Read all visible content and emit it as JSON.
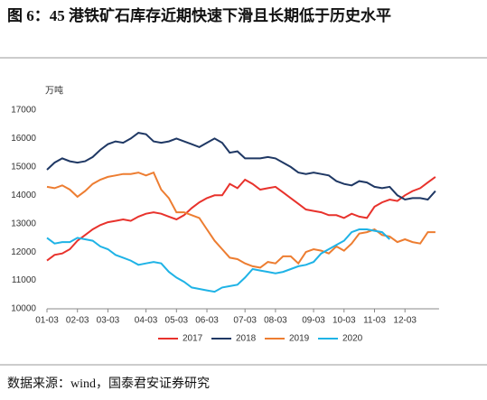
{
  "chart_data": {
    "type": "line",
    "title": "图 6：45 港铁矿石库存近期快速下滑且长期低于历史水平",
    "y_label": "万吨",
    "source": "数据来源：wind，国泰君安证券研究",
    "categories": [
      "01-03",
      null,
      null,
      null,
      "02-03",
      null,
      null,
      null,
      "03-03",
      null,
      null,
      null,
      null,
      "04-03",
      null,
      null,
      null,
      "05-03",
      null,
      null,
      null,
      "06-03",
      null,
      null,
      null,
      null,
      "07-03",
      null,
      null,
      null,
      "08-03",
      null,
      null,
      null,
      null,
      "09-03",
      null,
      null,
      null,
      "10-03",
      null,
      null,
      null,
      "11-03",
      null,
      null,
      null,
      "12-03",
      null,
      null,
      null,
      null
    ],
    "ylim": [
      10000,
      17000
    ],
    "yticks": [
      10000,
      11000,
      12000,
      13000,
      14000,
      15000,
      16000,
      17000
    ],
    "legend": "bottom",
    "series": [
      {
        "name": "2017",
        "color": "#e8322c",
        "values": [
          11700,
          11900,
          11950,
          12100,
          12400,
          12600,
          12800,
          12950,
          13050,
          13100,
          13150,
          13100,
          13250,
          13350,
          13400,
          13350,
          13250,
          13150,
          13300,
          13550,
          13750,
          13900,
          14000,
          14000,
          14400,
          14250,
          14550,
          14400,
          14200,
          14250,
          14300,
          14100,
          13900,
          13700,
          13500,
          13450,
          13400,
          13300,
          13300,
          13200,
          13350,
          13250,
          13200,
          13600,
          13750,
          13850,
          13800,
          14000,
          14150,
          14250,
          14450,
          14650
        ]
      },
      {
        "name": "2018",
        "color": "#1f3864",
        "values": [
          14900,
          15150,
          15300,
          15200,
          15150,
          15200,
          15350,
          15600,
          15800,
          15900,
          15850,
          16000,
          16200,
          16150,
          15900,
          15850,
          15900,
          16000,
          15900,
          15800,
          15700,
          15850,
          16000,
          15850,
          15500,
          15550,
          15300,
          15300,
          15300,
          15350,
          15300,
          15150,
          15000,
          14800,
          14750,
          14800,
          14750,
          14700,
          14500,
          14400,
          14350,
          14500,
          14450,
          14300,
          14250,
          14300,
          14000,
          13850,
          13900,
          13900,
          13850,
          14150
        ]
      },
      {
        "name": "2019",
        "color": "#ed7d31",
        "values": [
          14300,
          14250,
          14350,
          14200,
          13950,
          14150,
          14400,
          14550,
          14650,
          14700,
          14750,
          14750,
          14800,
          14700,
          14800,
          14200,
          13900,
          13400,
          13400,
          13300,
          13200,
          12800,
          12400,
          12100,
          11800,
          11750,
          11600,
          11500,
          11450,
          11650,
          11600,
          11850,
          11850,
          11600,
          12000,
          12100,
          12050,
          11950,
          12200,
          12050,
          12300,
          12650,
          12700,
          12800,
          12600,
          12550,
          12350,
          12450,
          12350,
          12300,
          12700,
          12700
        ]
      },
      {
        "name": "2020",
        "color": "#1fb3e6",
        "values": [
          12500,
          12300,
          12350,
          12350,
          12500,
          12450,
          12400,
          12200,
          12100,
          11900,
          11800,
          11700,
          11550,
          11600,
          11650,
          11600,
          11300,
          11100,
          10950,
          10750,
          10700,
          10650,
          10600,
          10750,
          10800,
          10850,
          11100,
          11400,
          11350,
          11300,
          11250,
          11300,
          11400,
          11500,
          11550,
          11650,
          11950,
          12100,
          12250,
          12400,
          12700,
          12800,
          12800,
          12750,
          12700,
          12450,
          null,
          null,
          null,
          null,
          null,
          null
        ]
      }
    ]
  }
}
